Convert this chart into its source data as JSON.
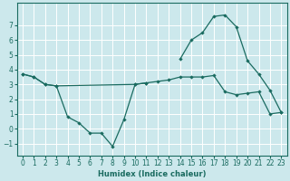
{
  "xlabel": "Humidex (Indice chaleur)",
  "background_color": "#cce8ec",
  "grid_color": "#ffffff",
  "line_color": "#1a6b60",
  "x_values": [
    0,
    1,
    2,
    3,
    4,
    5,
    6,
    7,
    8,
    9,
    10,
    11,
    12,
    13,
    14,
    15,
    16,
    17,
    18,
    19,
    20,
    21,
    22,
    23
  ],
  "series1_x": [
    0,
    1,
    2,
    3,
    4,
    5,
    6,
    7,
    8,
    9,
    10,
    11
  ],
  "series1_y": [
    3.7,
    3.5,
    3.0,
    2.9,
    0.8,
    0.4,
    -0.3,
    -0.3,
    -1.2,
    0.6,
    3.0,
    3.1
  ],
  "series2_x": [
    0,
    1,
    2,
    3,
    10,
    11,
    12,
    13,
    14,
    15,
    16,
    17,
    18,
    19,
    20,
    21,
    22,
    23
  ],
  "series2_y": [
    3.7,
    3.5,
    3.0,
    2.9,
    3.0,
    3.1,
    3.2,
    3.3,
    3.5,
    3.5,
    3.5,
    3.6,
    2.5,
    2.3,
    2.4,
    2.5,
    1.0,
    1.1
  ],
  "series3_x": [
    14,
    15,
    16,
    17,
    18,
    19,
    20,
    21,
    22,
    23
  ],
  "series3_y": [
    4.7,
    6.0,
    6.5,
    7.6,
    7.7,
    6.9,
    4.6,
    3.7,
    2.6,
    1.1
  ],
  "ylim": [
    -1.8,
    8.5
  ],
  "xlim": [
    -0.5,
    23.5
  ],
  "yticks": [
    -1,
    0,
    1,
    2,
    3,
    4,
    5,
    6,
    7
  ],
  "xticks": [
    0,
    1,
    2,
    3,
    4,
    5,
    6,
    7,
    8,
    9,
    10,
    11,
    12,
    13,
    14,
    15,
    16,
    17,
    18,
    19,
    20,
    21,
    22,
    23
  ],
  "tick_fontsize": 5.5,
  "xlabel_fontsize": 6.0
}
